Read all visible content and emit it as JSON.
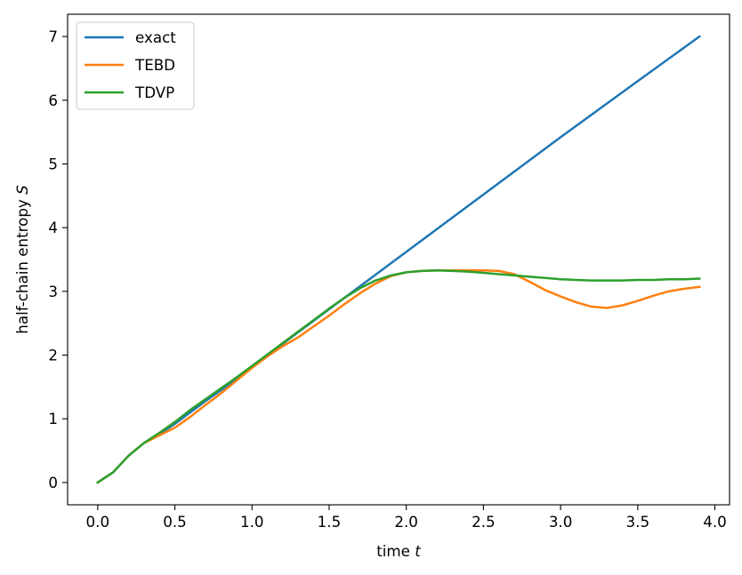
{
  "chart_data": {
    "type": "line",
    "xlabel": "time",
    "xlabel_var": "t",
    "ylabel": "half-chain entropy",
    "ylabel_var": "S",
    "xlim": [
      -0.195,
      4.095
    ],
    "ylim": [
      -0.35,
      7.35
    ],
    "xticks": [
      0.0,
      0.5,
      1.0,
      1.5,
      2.0,
      2.5,
      3.0,
      3.5,
      4.0
    ],
    "xtick_labels": [
      "0.0",
      "0.5",
      "1.0",
      "1.5",
      "2.0",
      "2.5",
      "3.0",
      "3.5",
      "4.0"
    ],
    "yticks": [
      0,
      1,
      2,
      3,
      4,
      5,
      6,
      7
    ],
    "ytick_labels": [
      "0",
      "1",
      "2",
      "3",
      "4",
      "5",
      "6",
      "7"
    ],
    "grid": false,
    "legend_position": "top-left",
    "series": [
      {
        "name": "exact",
        "color": "#1f77b4",
        "x": [
          0.0,
          0.1,
          0.2,
          0.3,
          0.4,
          0.5,
          0.6,
          0.7,
          0.8,
          0.9,
          1.0,
          1.1,
          1.2,
          1.3,
          1.4,
          1.5,
          1.6,
          1.7,
          1.8,
          1.9,
          2.0,
          2.5,
          3.0,
          3.5,
          3.9
        ],
        "y": [
          0.0,
          0.16,
          0.42,
          0.62,
          0.76,
          0.92,
          1.1,
          1.28,
          1.45,
          1.63,
          1.82,
          2.0,
          2.18,
          2.36,
          2.54,
          2.72,
          2.9,
          3.08,
          3.26,
          3.44,
          3.62,
          4.52,
          5.42,
          6.3,
          7.0
        ]
      },
      {
        "name": "TEBD",
        "color": "#ff7f0e",
        "x": [
          0.0,
          0.1,
          0.2,
          0.3,
          0.4,
          0.5,
          0.6,
          0.7,
          0.8,
          0.9,
          1.0,
          1.1,
          1.2,
          1.3,
          1.4,
          1.5,
          1.6,
          1.7,
          1.8,
          1.9,
          2.0,
          2.1,
          2.2,
          2.3,
          2.4,
          2.5,
          2.6,
          2.7,
          2.8,
          2.9,
          3.0,
          3.1,
          3.2,
          3.3,
          3.4,
          3.5,
          3.6,
          3.7,
          3.8,
          3.9
        ],
        "y": [
          0.0,
          0.16,
          0.42,
          0.62,
          0.74,
          0.86,
          1.03,
          1.22,
          1.4,
          1.6,
          1.8,
          1.98,
          2.14,
          2.28,
          2.45,
          2.62,
          2.8,
          2.97,
          3.12,
          3.24,
          3.3,
          3.32,
          3.33,
          3.33,
          3.33,
          3.33,
          3.32,
          3.27,
          3.15,
          3.02,
          2.92,
          2.83,
          2.76,
          2.74,
          2.78,
          2.85,
          2.93,
          3.0,
          3.04,
          3.07
        ]
      },
      {
        "name": "TDVP",
        "color": "#2ca02c",
        "x": [
          0.0,
          0.1,
          0.2,
          0.3,
          0.4,
          0.5,
          0.6,
          0.7,
          0.8,
          0.9,
          1.0,
          1.1,
          1.2,
          1.3,
          1.4,
          1.5,
          1.6,
          1.7,
          1.8,
          1.9,
          2.0,
          2.1,
          2.2,
          2.3,
          2.4,
          2.5,
          2.6,
          2.7,
          2.8,
          2.9,
          3.0,
          3.1,
          3.2,
          3.3,
          3.4,
          3.5,
          3.6,
          3.7,
          3.8,
          3.9
        ],
        "y": [
          0.0,
          0.16,
          0.42,
          0.62,
          0.78,
          0.95,
          1.14,
          1.31,
          1.48,
          1.65,
          1.83,
          2.01,
          2.19,
          2.37,
          2.55,
          2.73,
          2.9,
          3.05,
          3.17,
          3.25,
          3.3,
          3.32,
          3.33,
          3.32,
          3.31,
          3.29,
          3.27,
          3.25,
          3.23,
          3.21,
          3.19,
          3.18,
          3.17,
          3.17,
          3.17,
          3.18,
          3.18,
          3.19,
          3.19,
          3.2
        ]
      }
    ]
  }
}
